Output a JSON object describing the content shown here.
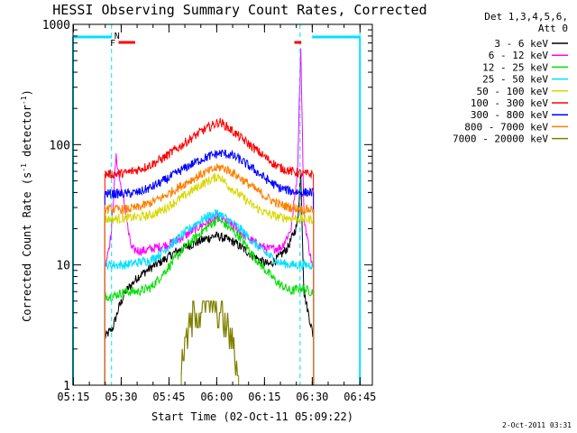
{
  "chart_data": {
    "type": "line",
    "title": "HESSI Observing Summary Count Rates, Corrected",
    "xlabel": "Start Time (02-Oct-11 05:09:22)",
    "ylabel_main": "Corrected Count Rate (s",
    "ylabel_sup1": "-1",
    "ylabel_mid": " detector",
    "ylabel_sup2": "-1",
    "ylabel_end": ")",
    "yscale": "log",
    "ylim": [
      1,
      1000
    ],
    "xlim_minutes": [
      5.5,
      99.5
    ],
    "x_unit": "minutes after 05:09:22",
    "x_ticks": [
      {
        "t": 5.63,
        "label": "05:15"
      },
      {
        "t": 20.63,
        "label": "05:30"
      },
      {
        "t": 35.63,
        "label": "05:45"
      },
      {
        "t": 50.63,
        "label": "06:00"
      },
      {
        "t": 65.63,
        "label": "06:15"
      },
      {
        "t": 80.63,
        "label": "06:30"
      },
      {
        "t": 95.63,
        "label": "06:45"
      }
    ],
    "y_ticks": [
      {
        "v": 1,
        "label": "1"
      },
      {
        "v": 10,
        "label": "10"
      },
      {
        "v": 100,
        "label": "100"
      },
      {
        "v": 1000,
        "label": "1000"
      }
    ],
    "legend_header": [
      "Det 1,3,4,5,6,",
      "Att 0"
    ],
    "timestamp": "2-Oct-2011 03:31",
    "markers": [
      {
        "label": "F",
        "t": 18.0,
        "color": "#ff2020"
      },
      {
        "label": "N",
        "t": 19.3,
        "color": "#00b0e0"
      }
    ],
    "spacecraft_day_segments": [
      [
        5.5,
        17.6
      ],
      [
        80.6,
        95.6
      ]
    ],
    "spacecraft_day_color": "#00e0ff",
    "saa_segments": [
      [
        19.8,
        25.0
      ],
      [
        75.0,
        77.2
      ]
    ],
    "saa_color": "#ff0000",
    "night_boundaries": [
      17.6,
      76.8,
      95.6
    ],
    "series": [
      {
        "name": "3 - 6 keV",
        "color": "#000000",
        "points": [
          [
            15.5,
            2.5
          ],
          [
            18.0,
            3.0
          ],
          [
            20.0,
            4.5
          ],
          [
            22.0,
            6.0
          ],
          [
            26.0,
            8.0
          ],
          [
            30.0,
            9.5
          ],
          [
            34.0,
            11.0
          ],
          [
            38.0,
            13.0
          ],
          [
            42.0,
            14.5
          ],
          [
            46.0,
            16.0
          ],
          [
            50.0,
            17.5
          ],
          [
            52.0,
            17.0
          ],
          [
            56.0,
            15.5
          ],
          [
            60.0,
            13.0
          ],
          [
            64.0,
            11.0
          ],
          [
            67.0,
            10.0
          ],
          [
            70.0,
            11.5
          ],
          [
            73.0,
            14.0
          ],
          [
            76.0,
            22.0
          ],
          [
            77.0,
            60.0
          ],
          [
            78.0,
            6.0
          ],
          [
            81.0,
            2.5
          ]
        ]
      },
      {
        "name": "6 - 12 keV",
        "color": "#ff00ff",
        "points": [
          [
            15.5,
            9.5
          ],
          [
            17.5,
            18.0
          ],
          [
            19.0,
            80.0
          ],
          [
            20.5,
            45.0
          ],
          [
            22.0,
            28.0
          ],
          [
            23.0,
            18.0
          ],
          [
            24.0,
            13.5
          ],
          [
            27.0,
            13.0
          ],
          [
            32.0,
            14.0
          ],
          [
            36.0,
            15.0
          ],
          [
            40.0,
            17.0
          ],
          [
            44.0,
            20.0
          ],
          [
            48.0,
            23.0
          ],
          [
            51.0,
            25.0
          ],
          [
            55.0,
            22.0
          ],
          [
            59.0,
            18.0
          ],
          [
            63.0,
            15.0
          ],
          [
            67.0,
            13.5
          ],
          [
            71.0,
            14.0
          ],
          [
            74.0,
            20.0
          ],
          [
            76.0,
            60.0
          ],
          [
            77.0,
            700.0
          ],
          [
            78.0,
            25.0
          ],
          [
            80.0,
            12.0
          ],
          [
            81.0,
            9.0
          ]
        ]
      },
      {
        "name": "12 - 25 keV",
        "color": "#00e000",
        "points": [
          [
            15.5,
            5.5
          ],
          [
            18.0,
            5.5
          ],
          [
            22.0,
            6.0
          ],
          [
            26.0,
            6.0
          ],
          [
            30.0,
            6.5
          ],
          [
            33.0,
            8.0
          ],
          [
            36.0,
            10.0
          ],
          [
            40.0,
            13.5
          ],
          [
            44.0,
            17.0
          ],
          [
            48.0,
            21.0
          ],
          [
            51.0,
            24.0
          ],
          [
            54.0,
            21.0
          ],
          [
            58.0,
            17.0
          ],
          [
            62.0,
            12.0
          ],
          [
            66.0,
            9.0
          ],
          [
            70.0,
            7.0
          ],
          [
            74.0,
            6.0
          ],
          [
            77.0,
            6.5
          ],
          [
            80.0,
            6.0
          ],
          [
            81.0,
            6.0
          ]
        ]
      },
      {
        "name": "25 - 50 keV",
        "color": "#00e0ff",
        "points": [
          [
            15.5,
            10.0
          ],
          [
            18.0,
            10.0
          ],
          [
            22.0,
            10.0
          ],
          [
            26.0,
            10.5
          ],
          [
            30.0,
            11.0
          ],
          [
            33.0,
            12.5
          ],
          [
            36.0,
            14.5
          ],
          [
            40.0,
            18.0
          ],
          [
            44.0,
            22.0
          ],
          [
            48.0,
            25.5
          ],
          [
            51.0,
            27.0
          ],
          [
            54.0,
            24.0
          ],
          [
            58.0,
            20.0
          ],
          [
            62.0,
            15.5
          ],
          [
            66.0,
            12.5
          ],
          [
            70.0,
            10.5
          ],
          [
            74.0,
            10.0
          ],
          [
            77.0,
            10.0
          ],
          [
            80.0,
            10.0
          ],
          [
            81.0,
            10.0
          ]
        ]
      },
      {
        "name": "50 - 100 keV",
        "color": "#d8d800",
        "points": [
          [
            15.5,
            24.0
          ],
          [
            18.0,
            24.0
          ],
          [
            22.0,
            24.5
          ],
          [
            26.0,
            25.0
          ],
          [
            30.0,
            26.0
          ],
          [
            34.0,
            29.0
          ],
          [
            38.0,
            34.0
          ],
          [
            42.0,
            40.0
          ],
          [
            46.0,
            47.0
          ],
          [
            50.0,
            53.0
          ],
          [
            51.5,
            55.0
          ],
          [
            54.0,
            46.0
          ],
          [
            58.0,
            38.0
          ],
          [
            62.0,
            31.0
          ],
          [
            66.0,
            27.0
          ],
          [
            70.0,
            25.0
          ],
          [
            74.0,
            24.5
          ],
          [
            78.0,
            24.0
          ],
          [
            81.0,
            24.0
          ]
        ]
      },
      {
        "name": "100 - 300 keV",
        "color": "#ff0000",
        "points": [
          [
            15.5,
            57.0
          ],
          [
            18.0,
            57.0
          ],
          [
            22.0,
            58.0
          ],
          [
            26.0,
            62.0
          ],
          [
            30.0,
            68.0
          ],
          [
            34.0,
            78.0
          ],
          [
            38.0,
            92.0
          ],
          [
            42.0,
            110.0
          ],
          [
            46.0,
            130.0
          ],
          [
            50.0,
            148.0
          ],
          [
            51.5,
            155.0
          ],
          [
            54.0,
            140.0
          ],
          [
            58.0,
            115.0
          ],
          [
            62.0,
            95.0
          ],
          [
            66.0,
            78.0
          ],
          [
            70.0,
            65.0
          ],
          [
            74.0,
            60.0
          ],
          [
            78.0,
            57.0
          ],
          [
            81.0,
            57.0
          ]
        ]
      },
      {
        "name": "300 - 800 keV",
        "color": "#0000ff",
        "points": [
          [
            15.5,
            39.0
          ],
          [
            18.0,
            39.0
          ],
          [
            22.0,
            39.0
          ],
          [
            26.0,
            40.0
          ],
          [
            30.0,
            44.0
          ],
          [
            34.0,
            50.0
          ],
          [
            38.0,
            58.0
          ],
          [
            42.0,
            67.0
          ],
          [
            46.0,
            76.0
          ],
          [
            50.0,
            83.0
          ],
          [
            52.0,
            85.0
          ],
          [
            55.0,
            82.0
          ],
          [
            58.0,
            75.0
          ],
          [
            62.0,
            63.0
          ],
          [
            66.0,
            52.0
          ],
          [
            70.0,
            44.0
          ],
          [
            74.0,
            41.0
          ],
          [
            78.0,
            40.0
          ],
          [
            81.0,
            40.0
          ]
        ]
      },
      {
        "name": "800 - 7000 keV",
        "color": "#ff8000",
        "points": [
          [
            15.5,
            29.0
          ],
          [
            18.0,
            29.0
          ],
          [
            22.0,
            29.0
          ],
          [
            26.0,
            30.0
          ],
          [
            30.0,
            33.0
          ],
          [
            34.0,
            37.0
          ],
          [
            38.0,
            43.0
          ],
          [
            42.0,
            50.0
          ],
          [
            46.0,
            57.0
          ],
          [
            50.0,
            63.0
          ],
          [
            52.0,
            65.0
          ],
          [
            55.0,
            60.0
          ],
          [
            58.0,
            53.0
          ],
          [
            62.0,
            44.0
          ],
          [
            66.0,
            37.0
          ],
          [
            70.0,
            32.0
          ],
          [
            74.0,
            30.0
          ],
          [
            78.0,
            29.0
          ],
          [
            81.0,
            29.0
          ]
        ]
      },
      {
        "name": "7000 - 20000 keV",
        "color": "#808000",
        "points": [
          [
            39.5,
            1.2
          ],
          [
            40.5,
            2.0
          ],
          [
            42.0,
            3.0
          ],
          [
            44.0,
            4.0
          ],
          [
            46.0,
            4.5
          ],
          [
            48.0,
            5.0
          ],
          [
            50.0,
            4.5
          ],
          [
            52.0,
            4.0
          ],
          [
            54.0,
            3.0
          ],
          [
            56.0,
            2.0
          ],
          [
            57.5,
            1.2
          ]
        ]
      }
    ]
  }
}
